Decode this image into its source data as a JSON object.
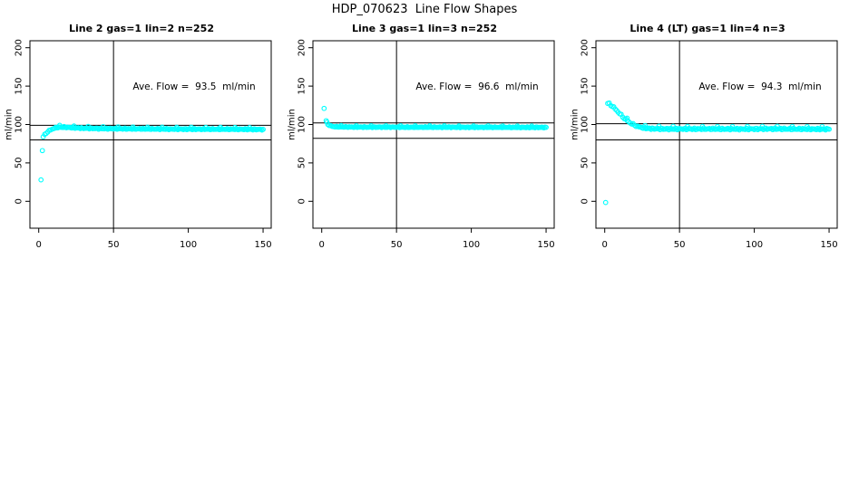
{
  "title": "HDP_070623  Line Flow Shapes",
  "axis_color": "#000000",
  "background": "#ffffff",
  "chart_data": [
    {
      "type": "scatter",
      "title": "Line 2 gas=1 lin=2 n=252",
      "annotation": "Ave. Flow =  93.5  ml/min",
      "ave_flow": 93.5,
      "n": 252,
      "ylabel": "ml/min",
      "x_ticks": [
        0,
        50,
        100,
        150
      ],
      "y_ticks": [
        0,
        50,
        100,
        150,
        200
      ],
      "xlim": [
        -6,
        155
      ],
      "ylim": [
        -35,
        209
      ],
      "vline_x": 50,
      "hlines": [
        99,
        80
      ],
      "point_color": "#00ffff",
      "spread": 1.6,
      "outliers": [
        [
          1.5,
          28
        ],
        [
          2.4,
          66
        ]
      ],
      "points": [
        [
          3,
          84
        ],
        [
          4,
          86.5
        ],
        [
          5,
          89
        ],
        [
          6,
          90.5
        ],
        [
          7,
          92
        ],
        [
          8,
          93
        ],
        [
          9,
          94
        ],
        [
          10,
          95
        ],
        [
          12,
          96
        ],
        [
          14,
          96.5
        ],
        [
          17,
          96.5
        ],
        [
          20,
          96.2
        ],
        [
          25,
          95.6
        ],
        [
          30,
          95.2
        ],
        [
          40,
          94.8
        ],
        [
          50,
          94.6
        ],
        [
          60,
          94.4
        ],
        [
          75,
          94.2
        ],
        [
          90,
          94.1
        ],
        [
          105,
          94
        ],
        [
          120,
          93.9
        ],
        [
          135,
          93.8
        ],
        [
          150,
          93.6
        ]
      ]
    },
    {
      "type": "scatter",
      "title": "Line 3 gas=1 lin=3 n=252",
      "annotation": "Ave. Flow =  96.6  ml/min",
      "ave_flow": 96.6,
      "n": 252,
      "ylabel": "ml/min",
      "x_ticks": [
        0,
        50,
        100,
        150
      ],
      "y_ticks": [
        0,
        50,
        100,
        150,
        200
      ],
      "xlim": [
        -6,
        155
      ],
      "ylim": [
        -35,
        209
      ],
      "vline_x": 50,
      "hlines": [
        102,
        82
      ],
      "point_color": "#00ffff",
      "spread": 1.2,
      "outliers": [
        [
          1.6,
          121
        ]
      ],
      "points": [
        [
          3,
          105
        ],
        [
          3.5,
          102.5
        ],
        [
          4,
          100.5
        ],
        [
          5,
          99
        ],
        [
          6,
          98.2
        ],
        [
          7,
          97.6
        ],
        [
          8,
          97.3
        ],
        [
          10,
          97
        ],
        [
          13,
          96.9
        ],
        [
          16,
          96.8
        ],
        [
          20,
          96.7
        ],
        [
          30,
          96.6
        ],
        [
          40,
          96.6
        ],
        [
          55,
          96.5
        ],
        [
          70,
          96.5
        ],
        [
          85,
          96.5
        ],
        [
          100,
          96.4
        ],
        [
          115,
          96.4
        ],
        [
          130,
          96.3
        ],
        [
          150,
          96.3
        ]
      ]
    },
    {
      "type": "scatter",
      "title": "Line 4 (LT) gas=1 lin=4 n=3",
      "annotation": "Ave. Flow =  94.3  ml/min",
      "ave_flow": 94.3,
      "n": 3,
      "ylabel": "ml/min",
      "x_ticks": [
        0,
        50,
        100,
        150
      ],
      "y_ticks": [
        0,
        50,
        100,
        150,
        200
      ],
      "xlim": [
        -6,
        155
      ],
      "ylim": [
        -35,
        209
      ],
      "vline_x": 50,
      "hlines": [
        101,
        80
      ],
      "point_color": "#00ffff",
      "spread": 2.2,
      "outliers": [
        [
          0.6,
          -1.5
        ]
      ],
      "points": [
        [
          2,
          127.5
        ],
        [
          3,
          127
        ],
        [
          4,
          125.5
        ],
        [
          5,
          124
        ],
        [
          6,
          122.2
        ],
        [
          7,
          120.3
        ],
        [
          8,
          118.3
        ],
        [
          9,
          116.3
        ],
        [
          10,
          114.2
        ],
        [
          11,
          112.2
        ],
        [
          12,
          110.2
        ],
        [
          13,
          108.3
        ],
        [
          14,
          106.6
        ],
        [
          15,
          105
        ],
        [
          16,
          103.6
        ],
        [
          17,
          102.3
        ],
        [
          18,
          101.1
        ],
        [
          19,
          100
        ],
        [
          20,
          99
        ],
        [
          21,
          98.2
        ],
        [
          22,
          97.5
        ],
        [
          23,
          96.9
        ],
        [
          24,
          96.4
        ],
        [
          25,
          96
        ],
        [
          27,
          95.4
        ],
        [
          29,
          95
        ],
        [
          31,
          94.7
        ],
        [
          34,
          94.5
        ],
        [
          37,
          94.4
        ],
        [
          40,
          94.3
        ],
        [
          45,
          94.3
        ],
        [
          50,
          94.3
        ],
        [
          60,
          94.2
        ],
        [
          70,
          94.2
        ],
        [
          80,
          94.1
        ],
        [
          90,
          94.1
        ],
        [
          100,
          94.3
        ],
        [
          110,
          94.4
        ],
        [
          120,
          94.2
        ],
        [
          130,
          94.1
        ],
        [
          140,
          94
        ],
        [
          150,
          93.9
        ]
      ]
    }
  ]
}
